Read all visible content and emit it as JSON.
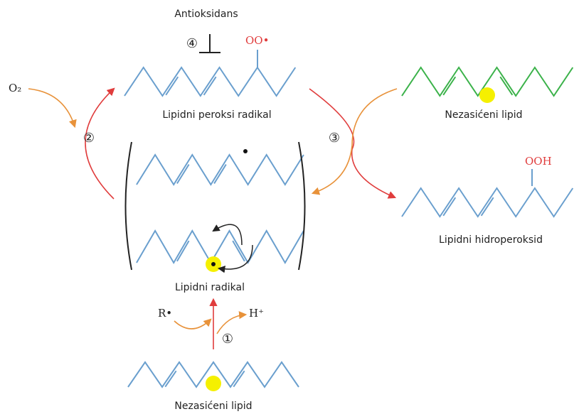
{
  "labels": {
    "antioxidant": "Antioksidans",
    "step4": "④",
    "peroxy_group": "OO•",
    "oxygen": "O₂",
    "step2": "②",
    "peroxy_radical": "Lipidni peroksi radikal",
    "step3": "③",
    "unsaturated_top": "Nezasićeni lipid",
    "hydroperoxy_group": "OOH",
    "hydroperoxide": "Lipidni hidroperoksid",
    "lipid_radical": "Lipidni radikal",
    "r_radical": "R•",
    "proton": "H⁺",
    "step1": "①",
    "unsaturated_bottom": "Nezasićeni lipid"
  }
}
